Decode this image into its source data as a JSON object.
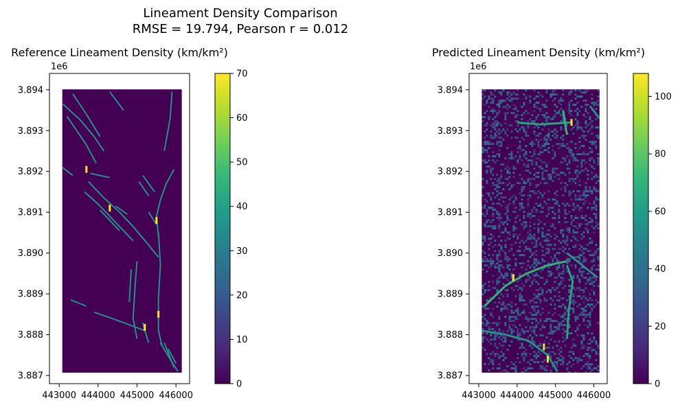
{
  "chart_data": {
    "suptitle": "Lineament Density Comparison",
    "subtitle": "RMSE = 19.794, Pearson r = 0.012",
    "panels": [
      {
        "type": "heatmap",
        "title": "Reference Lineament Density (km/km²)",
        "offset_label": "1e6",
        "x_ticks": [
          "443000",
          "444000",
          "445000",
          "446000"
        ],
        "x_tick_values": [
          443000,
          444000,
          445000,
          446000
        ],
        "y_ticks": [
          "3.894",
          "3.893",
          "3.892",
          "3.891",
          "3.890",
          "3.889",
          "3.888",
          "3.887"
        ],
        "y_tick_values": [
          3894000,
          3893000,
          3892000,
          3891000,
          3890000,
          3889000,
          3888000,
          3887000
        ],
        "xlim": [
          442750,
          446350
        ],
        "ylim": [
          3886800,
          3894400
        ],
        "extent": {
          "x": [
            443080,
            446150
          ],
          "y": [
            3887070,
            3894010
          ]
        },
        "colormap": "viridis",
        "colorbar": {
          "min": 0,
          "max": 70,
          "ticks": [
            "0",
            "10",
            "20",
            "30",
            "40",
            "50",
            "60",
            "70"
          ],
          "tick_values": [
            0,
            10,
            20,
            30,
            40,
            50,
            60,
            70
          ]
        },
        "background_value": 0,
        "line_value": 35,
        "lineaments": [
          [
            [
              443100,
              3893650
            ],
            [
              443550,
              3893250
            ],
            [
              443900,
              3892850
            ],
            [
              444150,
              3892500
            ]
          ],
          [
            [
              443350,
              3893900
            ],
            [
              443700,
              3893400
            ],
            [
              444050,
              3892850
            ]
          ],
          [
            [
              444300,
              3893950
            ],
            [
              444650,
              3893500
            ]
          ],
          [
            [
              443200,
              3893350
            ],
            [
              443450,
              3893000
            ],
            [
              443700,
              3892650
            ],
            [
              443950,
              3892200
            ]
          ],
          [
            [
              443080,
              3892100
            ],
            [
              443350,
              3891900
            ]
          ],
          [
            [
              443750,
              3891750
            ],
            [
              444150,
              3891350
            ],
            [
              444550,
              3891000
            ],
            [
              444900,
              3890650
            ],
            [
              445250,
              3890250
            ],
            [
              445550,
              3889900
            ]
          ],
          [
            [
              443650,
              3891500
            ],
            [
              444000,
              3891200
            ],
            [
              444500,
              3890700
            ],
            [
              444900,
              3890300
            ]
          ],
          [
            [
              444050,
              3891050
            ],
            [
              444550,
              3890550
            ]
          ],
          [
            [
              443800,
              3891950
            ],
            [
              444300,
              3891850
            ]
          ],
          [
            [
              444450,
              3891150
            ],
            [
              444750,
              3890950
            ]
          ],
          [
            [
              445900,
              3893950
            ],
            [
              445850,
              3893300
            ],
            [
              445700,
              3892500
            ]
          ],
          [
            [
              445950,
              3892050
            ],
            [
              445750,
              3891700
            ],
            [
              445600,
              3891300
            ],
            [
              445500,
              3890900
            ],
            [
              445550,
              3890400
            ]
          ],
          [
            [
              445050,
              3891750
            ],
            [
              445300,
              3891400
            ]
          ],
          [
            [
              445150,
              3891900
            ],
            [
              445450,
              3891500
            ]
          ],
          [
            [
              445300,
              3891000
            ],
            [
              445500,
              3890700
            ]
          ],
          [
            [
              445550,
              3890500
            ],
            [
              445600,
              3889700
            ],
            [
              445550,
              3888900
            ],
            [
              445550,
              3888100
            ],
            [
              445650,
              3887700
            ]
          ],
          [
            [
              445000,
              3889800
            ],
            [
              444950,
              3889200
            ],
            [
              444900,
              3888400
            ],
            [
              445000,
              3887900
            ]
          ],
          [
            [
              444850,
              3889600
            ],
            [
              444800,
              3888800
            ]
          ],
          [
            [
              443300,
              3888850
            ],
            [
              443700,
              3888700
            ]
          ],
          [
            [
              443900,
              3888550
            ],
            [
              444500,
              3888350
            ],
            [
              445200,
              3888100
            ]
          ],
          [
            [
              445150,
              3888300
            ],
            [
              445200,
              3888100
            ],
            [
              445300,
              3887800
            ]
          ],
          [
            [
              445600,
              3887800
            ],
            [
              445850,
              3887400
            ],
            [
              446050,
              3887100
            ]
          ],
          [
            [
              445800,
              3887650
            ],
            [
              446000,
              3887300
            ]
          ],
          [
            [
              445700,
              3887800
            ],
            [
              445950,
              3887200
            ]
          ]
        ],
        "hotspots": [
          [
            443700,
            3892050
          ],
          [
            444300,
            3891100
          ],
          [
            445200,
            3888180
          ],
          [
            445550,
            3888500
          ],
          [
            445500,
            3890800
          ]
        ]
      },
      {
        "type": "heatmap",
        "title": "Predicted Lineament Density (km/km²)",
        "offset_label": "1e6",
        "x_ticks": [
          "443000",
          "444000",
          "445000",
          "446000"
        ],
        "x_tick_values": [
          443000,
          444000,
          445000,
          446000
        ],
        "y_ticks": [
          "3.894",
          "3.893",
          "3.892",
          "3.891",
          "3.890",
          "3.889",
          "3.888",
          "3.887"
        ],
        "y_tick_values": [
          3894000,
          3893000,
          3892000,
          3891000,
          3890000,
          3889000,
          3888000,
          3887000
        ],
        "xlim": [
          442750,
          446350
        ],
        "ylim": [
          3886800,
          3894400
        ],
        "extent": {
          "x": [
            443080,
            446150
          ],
          "y": [
            3887070,
            3894010
          ]
        },
        "colormap": "viridis",
        "colorbar": {
          "min": 0,
          "max": 108,
          "ticks": [
            "0",
            "20",
            "40",
            "60",
            "80",
            "100"
          ],
          "tick_values": [
            0,
            20,
            40,
            60,
            80,
            100
          ]
        },
        "background_value": 0,
        "noise_fraction": 0.28,
        "noise_range": [
          15,
          45
        ],
        "lineaments": [
          [
            [
              443080,
              3888100
            ],
            [
              443700,
              3888000
            ],
            [
              444300,
              3887850
            ],
            [
              444800,
              3887500
            ],
            [
              445050,
              3887100
            ]
          ],
          [
            [
              445300,
              3889700
            ],
            [
              445450,
              3889300
            ],
            [
              445350,
              3888600
            ],
            [
              445300,
              3887900
            ]
          ],
          [
            [
              443150,
              3888700
            ],
            [
              443700,
              3889200
            ],
            [
              444250,
              3889500
            ],
            [
              444800,
              3889700
            ],
            [
              445300,
              3889800
            ]
          ],
          [
            [
              445300,
              3890000
            ],
            [
              445700,
              3889700
            ],
            [
              446100,
              3889400
            ]
          ],
          [
            [
              444000,
              3893200
            ],
            [
              444600,
              3893150
            ],
            [
              445400,
              3893200
            ]
          ],
          [
            [
              445200,
              3893500
            ],
            [
              445300,
              3892900
            ]
          ],
          [
            [
              445900,
              3893600
            ],
            [
              446150,
              3893300
            ]
          ]
        ],
        "hotspots": [
          [
            445420,
            3893200
          ],
          [
            443900,
            3889400
          ],
          [
            444700,
            3887700
          ],
          [
            444800,
            3887400
          ]
        ]
      }
    ]
  }
}
